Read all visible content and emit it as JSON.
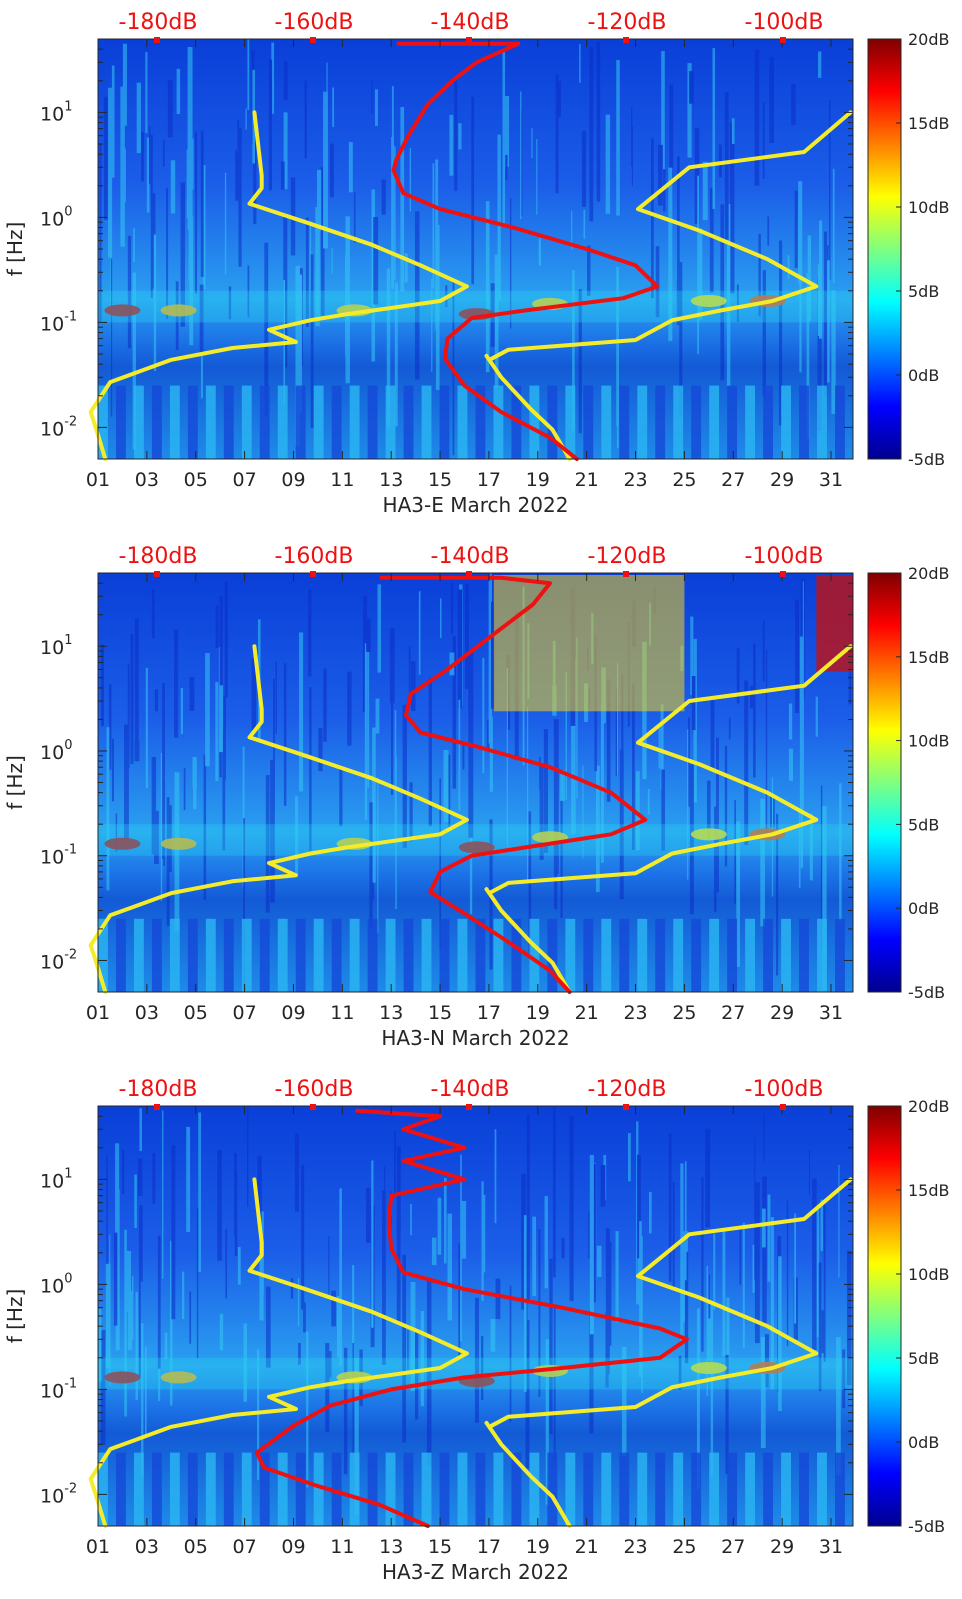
{
  "chart_data": [
    {
      "type": "heatmap",
      "xlabel": "HA3-E March 2022",
      "ylabel": "f [Hz]",
      "x_ticks": [
        "01",
        "03",
        "05",
        "07",
        "09",
        "11",
        "13",
        "15",
        "17",
        "19",
        "21",
        "23",
        "25",
        "27",
        "29",
        "31"
      ],
      "xlim": [
        1,
        31.9
      ],
      "y_scale": "log",
      "ylim": [
        0.005,
        50
      ],
      "y_ticks": [
        {
          "value": 0.01,
          "base": "10",
          "exp": "-2"
        },
        {
          "value": 0.1,
          "base": "10",
          "exp": "-1"
        },
        {
          "value": 1,
          "base": "10",
          "exp": "0"
        },
        {
          "value": 10,
          "base": "10",
          "exp": "1"
        }
      ],
      "top_axis": {
        "labels": [
          "-180dB",
          "-160dB",
          "-140dB",
          "-120dB",
          "-100dB"
        ],
        "color": "#ee1111"
      },
      "colorbar": {
        "labels": [
          "20dB",
          "15dB",
          "10dB",
          "5dB",
          "0dB",
          "-5dB"
        ],
        "range": [
          -5,
          20
        ],
        "colormap": "jet"
      },
      "overlay_lines": [
        {
          "color": "#f4ec2a",
          "points": [
            [
              7.4,
              10
            ],
            [
              7.7,
              2.5
            ],
            [
              7.7,
              1.9
            ],
            [
              7.2,
              1.35
            ],
            [
              9.5,
              0.9
            ],
            [
              12.2,
              0.55
            ],
            [
              14.2,
              0.35
            ],
            [
              16.1,
              0.22
            ],
            [
              15.0,
              0.16
            ],
            [
              11.2,
              0.12
            ],
            [
              9.7,
              0.105
            ],
            [
              8.0,
              0.085
            ],
            [
              9.1,
              0.065
            ],
            [
              6.5,
              0.057
            ],
            [
              4.0,
              0.044
            ],
            [
              1.5,
              0.027
            ],
            [
              0.7,
              0.014
            ],
            [
              1.0,
              0.0085
            ],
            [
              1.3,
              0.005
            ]
          ]
        },
        {
          "color": "#f4ec2a",
          "points": [
            [
              16.9,
              0.048
            ],
            [
              17.5,
              0.03
            ],
            [
              18.7,
              0.015
            ],
            [
              19.6,
              0.0095
            ],
            [
              20.3,
              0.005
            ]
          ]
        },
        {
          "color": "#f4ec2a",
          "points": [
            [
              31.8,
              10
            ],
            [
              29.9,
              4.2
            ],
            [
              25.2,
              3.0
            ],
            [
              23.1,
              1.2
            ],
            [
              25.6,
              0.75
            ],
            [
              28.4,
              0.4
            ],
            [
              30.4,
              0.22
            ],
            [
              28.6,
              0.16
            ],
            [
              26.5,
              0.13
            ],
            [
              24.5,
              0.105
            ],
            [
              23.0,
              0.068
            ],
            [
              17.8,
              0.055
            ],
            [
              17.1,
              0.045
            ]
          ]
        },
        {
          "color": "#ee1111",
          "points": [
            [
              13.3,
              45
            ],
            [
              18.2,
              45
            ],
            [
              16.5,
              30
            ],
            [
              15.5,
              20
            ],
            [
              14.5,
              12
            ],
            [
              13.7,
              6
            ],
            [
              13.2,
              3.5
            ],
            [
              13.1,
              2.8
            ],
            [
              13.5,
              1.7
            ],
            [
              15.0,
              1.2
            ],
            [
              18.0,
              0.8
            ],
            [
              21.0,
              0.5
            ],
            [
              23.0,
              0.35
            ],
            [
              23.9,
              0.22
            ],
            [
              22.5,
              0.17
            ],
            [
              18.5,
              0.13
            ],
            [
              16.3,
              0.11
            ],
            [
              15.3,
              0.07
            ],
            [
              15.2,
              0.045
            ],
            [
              16.0,
              0.025
            ],
            [
              17.5,
              0.014
            ],
            [
              19.5,
              0.008
            ],
            [
              20.6,
              0.005
            ]
          ]
        }
      ]
    },
    {
      "type": "heatmap",
      "xlabel": "HA3-N March 2022",
      "ylabel": "f [Hz]",
      "x_ticks": [
        "01",
        "03",
        "05",
        "07",
        "09",
        "11",
        "13",
        "15",
        "17",
        "19",
        "21",
        "23",
        "25",
        "27",
        "29",
        "31"
      ],
      "xlim": [
        1,
        31.9
      ],
      "y_scale": "log",
      "ylim": [
        0.005,
        50
      ],
      "y_ticks": [
        {
          "value": 0.01,
          "base": "10",
          "exp": "-2"
        },
        {
          "value": 0.1,
          "base": "10",
          "exp": "-1"
        },
        {
          "value": 1,
          "base": "10",
          "exp": "0"
        },
        {
          "value": 10,
          "base": "10",
          "exp": "1"
        }
      ],
      "top_axis": {
        "labels": [
          "-180dB",
          "-160dB",
          "-140dB",
          "-120dB",
          "-100dB"
        ],
        "color": "#ee1111"
      },
      "colorbar": {
        "labels": [
          "20dB",
          "15dB",
          "10dB",
          "5dB",
          "0dB",
          "-5dB"
        ],
        "range": [
          -5,
          20
        ],
        "colormap": "jet"
      },
      "overlay_lines": [
        {
          "color": "#f4ec2a",
          "points": [
            [
              7.4,
              10
            ],
            [
              7.7,
              2.5
            ],
            [
              7.7,
              1.9
            ],
            [
              7.2,
              1.35
            ],
            [
              9.5,
              0.9
            ],
            [
              12.2,
              0.55
            ],
            [
              14.2,
              0.35
            ],
            [
              16.1,
              0.22
            ],
            [
              15.0,
              0.16
            ],
            [
              11.2,
              0.12
            ],
            [
              9.7,
              0.105
            ],
            [
              8.0,
              0.085
            ],
            [
              9.1,
              0.065
            ],
            [
              6.5,
              0.057
            ],
            [
              4.0,
              0.044
            ],
            [
              1.5,
              0.027
            ],
            [
              0.7,
              0.014
            ],
            [
              1.0,
              0.0085
            ],
            [
              1.3,
              0.005
            ]
          ]
        },
        {
          "color": "#f4ec2a",
          "points": [
            [
              16.9,
              0.048
            ],
            [
              17.5,
              0.03
            ],
            [
              18.7,
              0.015
            ],
            [
              19.6,
              0.0095
            ],
            [
              20.3,
              0.005
            ]
          ]
        },
        {
          "color": "#f4ec2a",
          "points": [
            [
              31.8,
              10
            ],
            [
              29.9,
              4.2
            ],
            [
              25.2,
              3.0
            ],
            [
              23.1,
              1.2
            ],
            [
              25.6,
              0.75
            ],
            [
              28.4,
              0.4
            ],
            [
              30.4,
              0.22
            ],
            [
              28.6,
              0.16
            ],
            [
              26.5,
              0.13
            ],
            [
              24.5,
              0.105
            ],
            [
              23.0,
              0.068
            ],
            [
              17.8,
              0.055
            ],
            [
              17.1,
              0.045
            ]
          ]
        },
        {
          "color": "#ee1111",
          "points": [
            [
              12.6,
              45
            ],
            [
              17.5,
              45
            ],
            [
              19.5,
              40
            ],
            [
              18.8,
              25
            ],
            [
              17.0,
              12
            ],
            [
              15.3,
              6
            ],
            [
              13.8,
              3.5
            ],
            [
              13.6,
              2.2
            ],
            [
              14.2,
              1.5
            ],
            [
              16.5,
              1.1
            ],
            [
              19.5,
              0.7
            ],
            [
              22.0,
              0.4
            ],
            [
              23.4,
              0.22
            ],
            [
              22.0,
              0.16
            ],
            [
              18.5,
              0.12
            ],
            [
              16.3,
              0.1
            ],
            [
              15.0,
              0.07
            ],
            [
              14.6,
              0.045
            ],
            [
              16.0,
              0.028
            ],
            [
              17.8,
              0.015
            ],
            [
              19.5,
              0.008
            ],
            [
              20.3,
              0.005
            ]
          ]
        }
      ]
    },
    {
      "type": "heatmap",
      "xlabel": "HA3-Z March 2022",
      "ylabel": "f [Hz]",
      "x_ticks": [
        "01",
        "03",
        "05",
        "07",
        "09",
        "11",
        "13",
        "15",
        "17",
        "19",
        "21",
        "23",
        "25",
        "27",
        "29",
        "31"
      ],
      "xlim": [
        1,
        31.9
      ],
      "y_scale": "log",
      "ylim": [
        0.005,
        50
      ],
      "y_ticks": [
        {
          "value": 0.01,
          "base": "10",
          "exp": "-2"
        },
        {
          "value": 0.1,
          "base": "10",
          "exp": "-1"
        },
        {
          "value": 1,
          "base": "10",
          "exp": "0"
        },
        {
          "value": 10,
          "base": "10",
          "exp": "1"
        }
      ],
      "top_axis": {
        "labels": [
          "-180dB",
          "-160dB",
          "-140dB",
          "-120dB",
          "-100dB"
        ],
        "color": "#ee1111"
      },
      "colorbar": {
        "labels": [
          "20dB",
          "15dB",
          "10dB",
          "5dB",
          "0dB",
          "-5dB"
        ],
        "range": [
          -5,
          20
        ],
        "colormap": "jet"
      },
      "overlay_lines": [
        {
          "color": "#f4ec2a",
          "points": [
            [
              7.4,
              10
            ],
            [
              7.7,
              2.5
            ],
            [
              7.7,
              1.9
            ],
            [
              7.2,
              1.35
            ],
            [
              9.5,
              0.9
            ],
            [
              12.2,
              0.55
            ],
            [
              14.2,
              0.35
            ],
            [
              16.1,
              0.22
            ],
            [
              15.0,
              0.16
            ],
            [
              11.2,
              0.12
            ],
            [
              9.7,
              0.105
            ],
            [
              8.0,
              0.085
            ],
            [
              9.1,
              0.065
            ],
            [
              6.5,
              0.057
            ],
            [
              4.0,
              0.044
            ],
            [
              1.5,
              0.027
            ],
            [
              0.7,
              0.014
            ],
            [
              1.0,
              0.0085
            ],
            [
              1.3,
              0.005
            ]
          ]
        },
        {
          "color": "#f4ec2a",
          "points": [
            [
              16.9,
              0.048
            ],
            [
              17.5,
              0.03
            ],
            [
              18.7,
              0.015
            ],
            [
              19.6,
              0.0095
            ],
            [
              20.3,
              0.005
            ]
          ]
        },
        {
          "color": "#f4ec2a",
          "points": [
            [
              31.8,
              10
            ],
            [
              29.9,
              4.2
            ],
            [
              25.2,
              3.0
            ],
            [
              23.1,
              1.2
            ],
            [
              25.6,
              0.75
            ],
            [
              28.4,
              0.4
            ],
            [
              30.4,
              0.22
            ],
            [
              28.6,
              0.16
            ],
            [
              26.5,
              0.13
            ],
            [
              24.5,
              0.105
            ],
            [
              23.0,
              0.068
            ],
            [
              17.8,
              0.055
            ],
            [
              17.1,
              0.045
            ]
          ]
        },
        {
          "color": "#ee1111",
          "points": [
            [
              11.6,
              45
            ],
            [
              15.0,
              40
            ],
            [
              13.5,
              30
            ],
            [
              16.0,
              20
            ],
            [
              13.5,
              15
            ],
            [
              16.0,
              10
            ],
            [
              13.0,
              7
            ],
            [
              12.9,
              4
            ],
            [
              13.0,
              2.2
            ],
            [
              13.5,
              1.3
            ],
            [
              16.0,
              0.9
            ],
            [
              20.0,
              0.6
            ],
            [
              24.0,
              0.38
            ],
            [
              25.1,
              0.3
            ],
            [
              24.0,
              0.2
            ],
            [
              20.0,
              0.16
            ],
            [
              16.0,
              0.13
            ],
            [
              13.0,
              0.1
            ],
            [
              10.5,
              0.07
            ],
            [
              9.0,
              0.045
            ],
            [
              7.5,
              0.025
            ],
            [
              7.8,
              0.018
            ],
            [
              10.0,
              0.012
            ],
            [
              12.5,
              0.008
            ],
            [
              14.5,
              0.005
            ]
          ]
        }
      ]
    }
  ]
}
